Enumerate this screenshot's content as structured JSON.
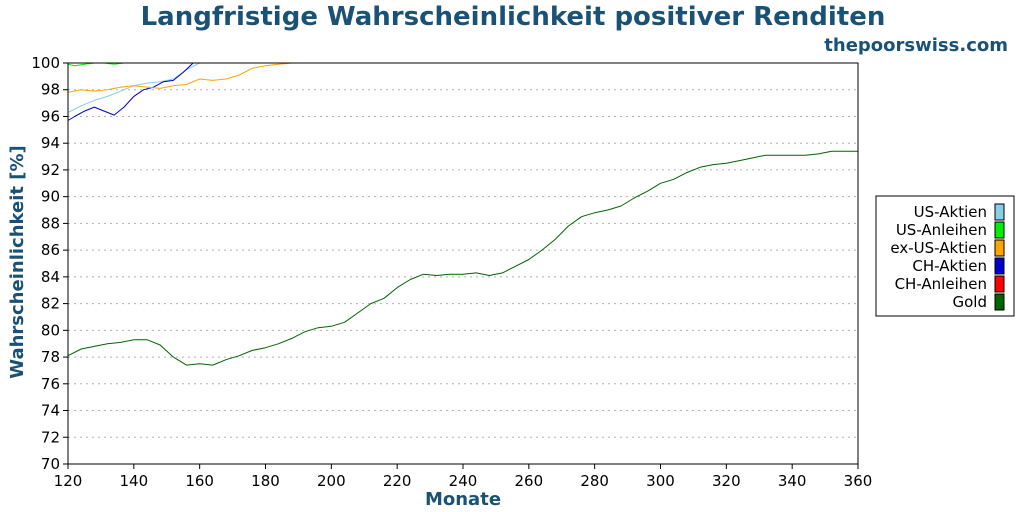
{
  "site": "thepoorswiss.com",
  "chart_data": {
    "type": "line",
    "title": "Langfristige Wahrscheinlichkeit positiver Renditen",
    "xlabel": "Monate",
    "ylabel": "Wahrscheinlichkeit [%]",
    "xlim": [
      120,
      360
    ],
    "ylim": [
      70,
      100
    ],
    "xticks": [
      120,
      140,
      160,
      180,
      200,
      220,
      240,
      260,
      280,
      300,
      320,
      340,
      360
    ],
    "yticks": [
      70,
      72,
      74,
      76,
      78,
      80,
      82,
      84,
      86,
      88,
      90,
      92,
      94,
      96,
      98,
      100
    ],
    "grid": "horizontal-dotted",
    "legend_position": "right",
    "series": [
      {
        "name": "US-Aktien",
        "color": "#87ceeb",
        "x": [
          120,
          124,
          128,
          132,
          136,
          140,
          144,
          148,
          152,
          156,
          160,
          165
        ],
        "y": [
          96.3,
          96.8,
          97.2,
          97.5,
          97.9,
          98.3,
          98.5,
          98.6,
          98.8,
          99.5,
          100,
          100
        ]
      },
      {
        "name": "US-Anleihen",
        "color": "#00ee00",
        "x": [
          120,
          122,
          125,
          128,
          131,
          134,
          137,
          140,
          145,
          150,
          360
        ],
        "y": [
          99.9,
          99.8,
          99.9,
          100,
          100,
          99.9,
          100,
          100,
          100,
          100,
          100
        ]
      },
      {
        "name": "ex-US-Aktien",
        "color": "#ffa500",
        "x": [
          120,
          124,
          128,
          132,
          136,
          140,
          144,
          148,
          152,
          156,
          160,
          164,
          168,
          172,
          176,
          180,
          184,
          188,
          190
        ],
        "y": [
          97.8,
          98.0,
          97.9,
          98.0,
          98.2,
          98.3,
          98.2,
          98.1,
          98.3,
          98.4,
          98.8,
          98.7,
          98.8,
          99.1,
          99.6,
          99.8,
          99.9,
          100,
          100
        ]
      },
      {
        "name": "CH-Aktien",
        "color": "#0000cd",
        "x": [
          120,
          122,
          125,
          128,
          131,
          134,
          137,
          140,
          143,
          146,
          149,
          152,
          155,
          158,
          160,
          164
        ],
        "y": [
          95.7,
          96.0,
          96.4,
          96.7,
          96.4,
          96.1,
          96.7,
          97.5,
          98.0,
          98.2,
          98.6,
          98.7,
          99.3,
          100,
          100,
          100
        ]
      },
      {
        "name": "CH-Anleihen",
        "color": "#ff0000",
        "x": [
          120,
          360
        ],
        "y": [
          100,
          100
        ]
      },
      {
        "name": "Gold",
        "color": "#006400",
        "x": [
          120,
          124,
          128,
          132,
          136,
          140,
          144,
          148,
          152,
          156,
          160,
          164,
          168,
          172,
          176,
          180,
          184,
          188,
          192,
          196,
          200,
          204,
          208,
          212,
          216,
          220,
          224,
          228,
          232,
          236,
          240,
          244,
          248,
          252,
          256,
          260,
          264,
          268,
          272,
          276,
          280,
          284,
          288,
          292,
          296,
          300,
          304,
          308,
          312,
          316,
          320,
          324,
          328,
          332,
          336,
          340,
          344,
          348,
          352,
          356,
          360
        ],
        "y": [
          78.1,
          78.6,
          78.8,
          79.0,
          79.1,
          79.3,
          79.3,
          78.9,
          78.0,
          77.4,
          77.5,
          77.4,
          77.8,
          78.1,
          78.5,
          78.7,
          79.0,
          79.4,
          79.9,
          80.2,
          80.3,
          80.6,
          81.3,
          82.0,
          82.4,
          83.2,
          83.8,
          84.2,
          84.1,
          84.2,
          84.2,
          84.3,
          84.1,
          84.3,
          84.8,
          85.3,
          86.0,
          86.8,
          87.8,
          88.5,
          88.8,
          89.0,
          89.3,
          89.9,
          90.4,
          91.0,
          91.3,
          91.8,
          92.2,
          92.4,
          92.5,
          92.7,
          92.9,
          93.1,
          93.1,
          93.1,
          93.1,
          93.2,
          93.4,
          93.4,
          93.4
        ]
      }
    ]
  }
}
